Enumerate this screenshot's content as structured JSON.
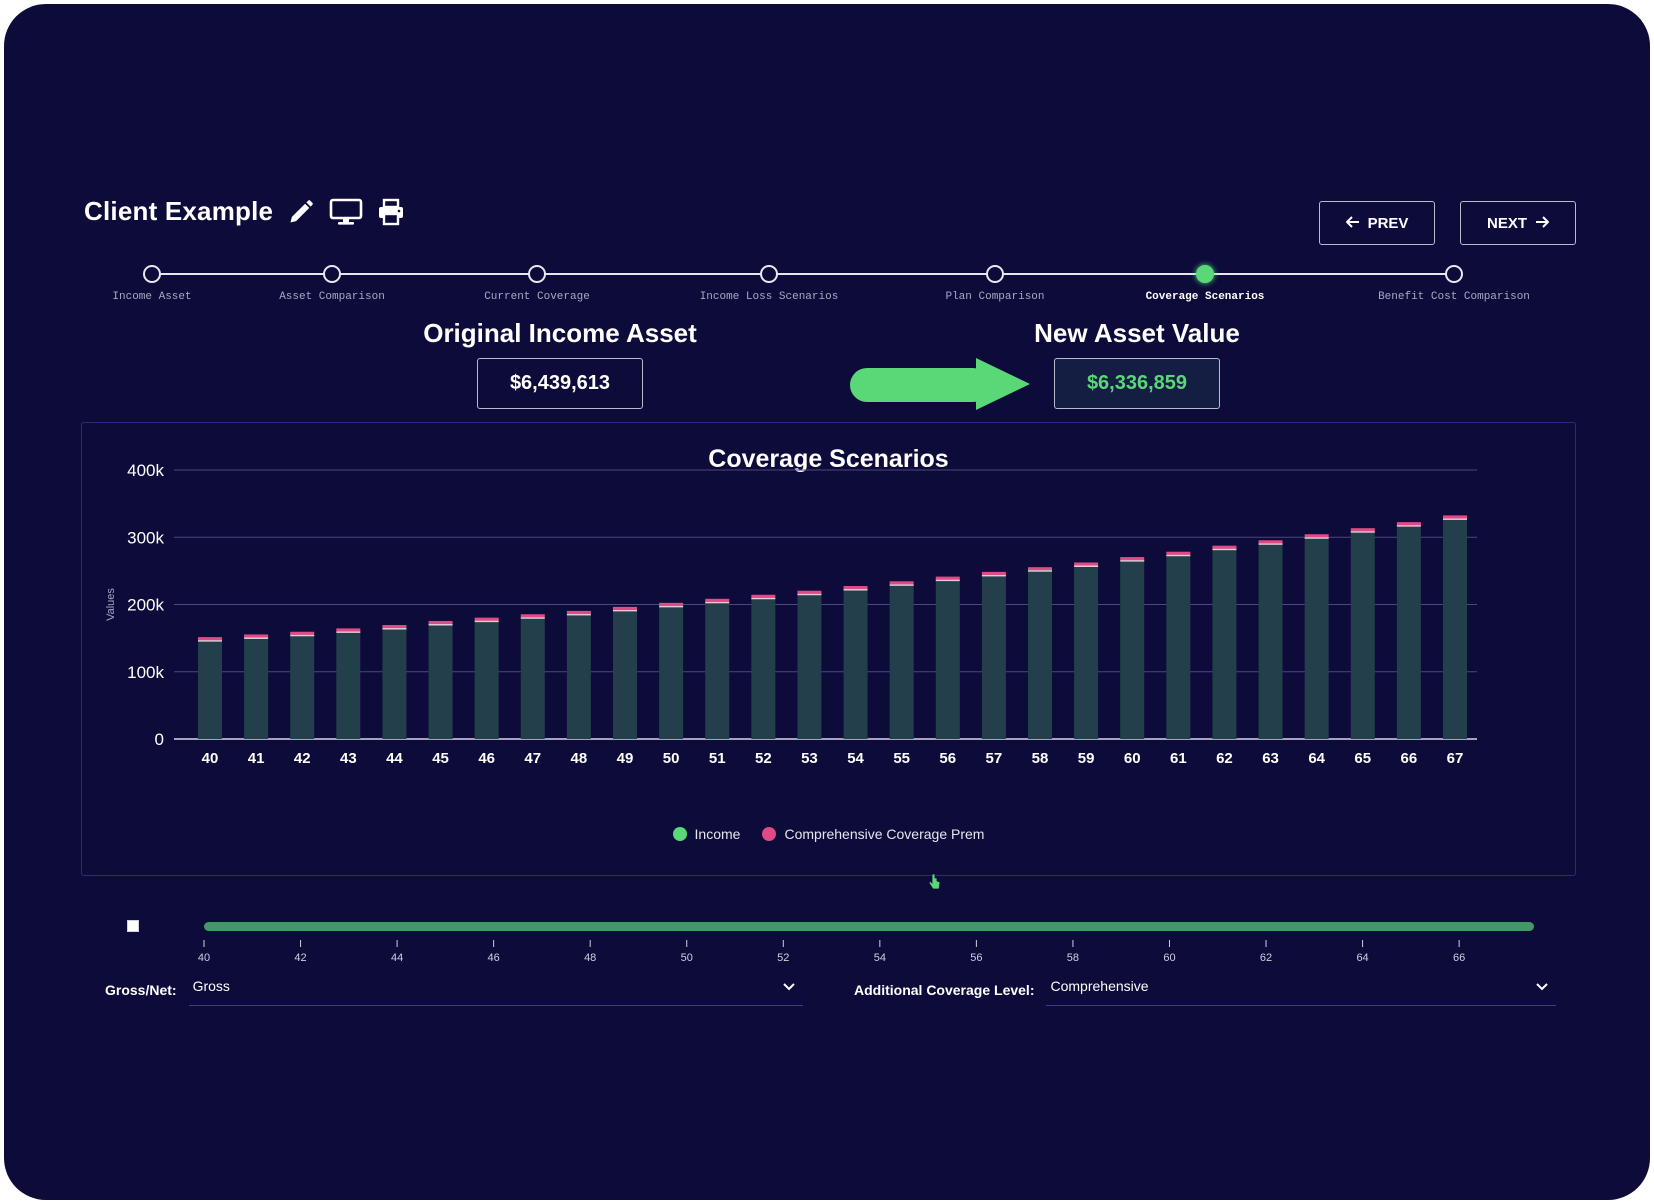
{
  "header": {
    "client_name": "Client Example",
    "icons": [
      "pencil-icon",
      "monitor-icon",
      "printer-icon"
    ],
    "prev_label": "PREV",
    "next_label": "NEXT"
  },
  "steps": [
    {
      "label": "Income Asset",
      "active": false
    },
    {
      "label": "Asset Comparison",
      "active": false
    },
    {
      "label": "Current Coverage",
      "active": false
    },
    {
      "label": "Income Loss Scenarios",
      "active": false
    },
    {
      "label": "Plan Comparison",
      "active": false
    },
    {
      "label": "Coverage Scenarios",
      "active": true
    },
    {
      "label": "Benefit Cost Comparison",
      "active": false
    }
  ],
  "assets": {
    "original_label": "Original Income Asset",
    "original_value": "$6,439,613",
    "new_label": "New Asset Value",
    "new_value": "$6,336,859"
  },
  "colors": {
    "background": "#0c0b3a",
    "accent_green": "#5ad878",
    "income_bar": "#233f4c",
    "premium": "#e24a86"
  },
  "chart_data": {
    "type": "bar",
    "title": "Coverage Scenarios",
    "ylabel": "Values",
    "xlabel": "",
    "ylim": [
      0,
      400000
    ],
    "yticks": [
      "0",
      "100k",
      "200k",
      "300k",
      "400k"
    ],
    "categories": [
      "40",
      "41",
      "42",
      "43",
      "44",
      "45",
      "46",
      "47",
      "48",
      "49",
      "50",
      "51",
      "52",
      "53",
      "54",
      "55",
      "56",
      "57",
      "58",
      "59",
      "60",
      "61",
      "62",
      "63",
      "64",
      "65",
      "66",
      "67"
    ],
    "series": [
      {
        "name": "Income",
        "color": "#5ad878",
        "values": [
          147000,
          151000,
          155000,
          160000,
          165000,
          171000,
          176000,
          181000,
          186000,
          192000,
          198000,
          204000,
          210000,
          216000,
          223000,
          230000,
          237000,
          244000,
          251000,
          258000,
          266000,
          274000,
          283000,
          291000,
          300000,
          309000,
          318000,
          328000
        ]
      },
      {
        "name": "Comprehensive Coverage Prem",
        "color": "#e24a86",
        "values": [
          3000,
          3000,
          3000,
          3000,
          3000,
          3000,
          3000,
          3000,
          3000,
          3000,
          3000,
          3000,
          3000,
          3000,
          3000,
          3000,
          3000,
          3000,
          3000,
          3000,
          3000,
          3000,
          3000,
          3000,
          3000,
          3000,
          3000,
          3000
        ]
      }
    ],
    "stacked": true,
    "grid": true,
    "legend_position": "bottom"
  },
  "range_slider": {
    "ticks": [
      "40",
      "42",
      "44",
      "46",
      "48",
      "50",
      "52",
      "54",
      "56",
      "58",
      "60",
      "62",
      "64",
      "66"
    ],
    "min": 40,
    "max": 67,
    "selected_min": 40,
    "selected_max": 67
  },
  "controls": {
    "gross_net_label": "Gross/Net:",
    "gross_net_value": "Gross",
    "coverage_level_label": "Additional Coverage Level:",
    "coverage_level_value": "Comprehensive"
  }
}
